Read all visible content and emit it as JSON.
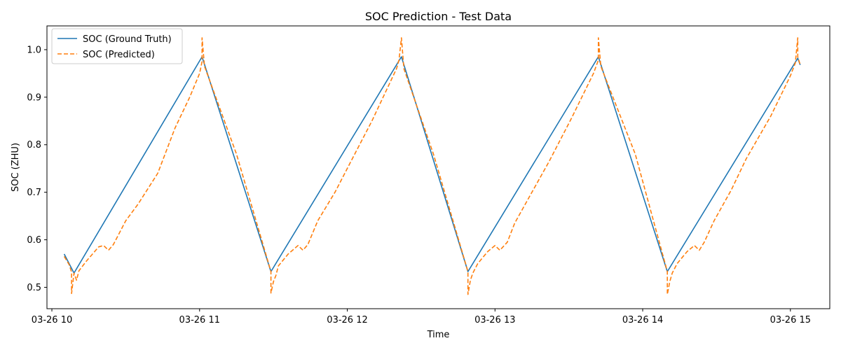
{
  "chart_data": {
    "type": "line",
    "title": "SOC Prediction - Test Data",
    "xlabel": "Time",
    "ylabel": "SOC (ZHU)",
    "x_ticks": [
      "03-26 10",
      "03-26 11",
      "03-26 12",
      "03-26 13",
      "03-26 14",
      "03-26 15"
    ],
    "y_ticks": [
      "0.5",
      "0.6",
      "0.7",
      "0.8",
      "0.9",
      "1.0"
    ],
    "xlim": [
      "2024-03-26 09:58",
      "2024-03-26 15:16"
    ],
    "ylim": [
      0.455,
      1.05
    ],
    "grid": false,
    "legend_position": "top-left",
    "series": [
      {
        "name": "SOC (Ground Truth)",
        "color": "#1f77b4",
        "style": "solid",
        "points": [
          [
            "2024-03-26 10:05",
            0.57
          ],
          [
            "2024-03-26 10:09",
            0.53
          ],
          [
            "2024-03-26 11:01",
            0.985
          ],
          [
            "2024-03-26 11:29",
            0.533
          ],
          [
            "2024-03-26 12:22",
            0.985
          ],
          [
            "2024-03-26 12:49",
            0.533
          ],
          [
            "2024-03-26 13:42",
            0.985
          ],
          [
            "2024-03-26 14:10",
            0.533
          ],
          [
            "2024-03-26 15:03",
            0.982
          ],
          [
            "2024-03-26 15:04",
            0.968
          ]
        ]
      },
      {
        "name": "SOC (Predicted)",
        "color": "#ff7f0e",
        "style": "dashed",
        "points": [
          [
            "2024-03-26 10:05",
            0.565
          ],
          [
            "2024-03-26 10:07",
            0.548
          ],
          [
            "2024-03-26 10:08",
            0.532
          ],
          [
            "2024-03-26 10:08",
            0.487
          ],
          [
            "2024-03-26 10:09",
            0.53
          ],
          [
            "2024-03-26 10:10",
            0.515
          ],
          [
            "2024-03-26 10:11",
            0.535
          ],
          [
            "2024-03-26 10:14",
            0.555
          ],
          [
            "2024-03-26 10:19",
            0.585
          ],
          [
            "2024-03-26 10:21",
            0.588
          ],
          [
            "2024-03-26 10:23",
            0.578
          ],
          [
            "2024-03-26 10:25",
            0.59
          ],
          [
            "2024-03-26 10:30",
            0.64
          ],
          [
            "2024-03-26 10:35",
            0.675
          ],
          [
            "2024-03-26 10:43",
            0.74
          ],
          [
            "2024-03-26 10:50",
            0.835
          ],
          [
            "2024-03-26 10:56",
            0.9
          ],
          [
            "2024-03-26 11:00",
            0.95
          ],
          [
            "2024-03-26 11:01",
            0.975
          ],
          [
            "2024-03-26 11:01",
            1.025
          ],
          [
            "2024-03-26 11:02",
            0.965
          ],
          [
            "2024-03-26 11:15",
            0.78
          ],
          [
            "2024-03-26 11:29",
            0.533
          ],
          [
            "2024-03-26 11:29",
            0.488
          ],
          [
            "2024-03-26 11:30",
            0.512
          ],
          [
            "2024-03-26 11:31",
            0.525
          ],
          [
            "2024-03-26 11:32",
            0.545
          ],
          [
            "2024-03-26 11:36",
            0.57
          ],
          [
            "2024-03-26 11:40",
            0.588
          ],
          [
            "2024-03-26 11:42",
            0.578
          ],
          [
            "2024-03-26 11:44",
            0.59
          ],
          [
            "2024-03-26 11:48",
            0.64
          ],
          [
            "2024-03-26 11:55",
            0.7
          ],
          [
            "2024-03-26 12:01",
            0.76
          ],
          [
            "2024-03-26 12:10",
            0.85
          ],
          [
            "2024-03-26 12:20",
            0.96
          ],
          [
            "2024-03-26 12:21",
            0.978
          ],
          [
            "2024-03-26 12:22",
            1.025
          ],
          [
            "2024-03-26 12:23",
            0.96
          ],
          [
            "2024-03-26 12:35",
            0.78
          ],
          [
            "2024-03-26 12:49",
            0.533
          ],
          [
            "2024-03-26 12:49",
            0.485
          ],
          [
            "2024-03-26 12:50",
            0.515
          ],
          [
            "2024-03-26 12:51",
            0.53
          ],
          [
            "2024-03-26 12:53",
            0.55
          ],
          [
            "2024-03-26 12:57",
            0.575
          ],
          [
            "2024-03-26 13:00",
            0.588
          ],
          [
            "2024-03-26 13:02",
            0.578
          ],
          [
            "2024-03-26 13:05",
            0.595
          ],
          [
            "2024-03-26 13:08",
            0.635
          ],
          [
            "2024-03-26 13:15",
            0.7
          ],
          [
            "2024-03-26 13:22",
            0.765
          ],
          [
            "2024-03-26 13:31",
            0.855
          ],
          [
            "2024-03-26 13:40",
            0.95
          ],
          [
            "2024-03-26 13:42",
            0.978
          ],
          [
            "2024-03-26 13:42",
            1.025
          ],
          [
            "2024-03-26 13:43",
            0.965
          ],
          [
            "2024-03-26 13:57",
            0.78
          ],
          [
            "2024-03-26 14:10",
            0.533
          ],
          [
            "2024-03-26 14:10",
            0.485
          ],
          [
            "2024-03-26 14:11",
            0.512
          ],
          [
            "2024-03-26 14:12",
            0.53
          ],
          [
            "2024-03-26 14:14",
            0.55
          ],
          [
            "2024-03-26 14:18",
            0.575
          ],
          [
            "2024-03-26 14:21",
            0.588
          ],
          [
            "2024-03-26 14:23",
            0.578
          ],
          [
            "2024-03-26 14:25",
            0.595
          ],
          [
            "2024-03-26 14:29",
            0.64
          ],
          [
            "2024-03-26 14:36",
            0.705
          ],
          [
            "2024-03-26 14:42",
            0.77
          ],
          [
            "2024-03-26 14:52",
            0.86
          ],
          [
            "2024-03-26 15:00",
            0.945
          ],
          [
            "2024-03-26 15:02",
            0.972
          ],
          [
            "2024-03-26 15:03",
            1.025
          ],
          [
            "2024-03-26 15:03",
            0.985
          ],
          [
            "2024-03-26 15:04",
            0.968
          ]
        ]
      }
    ]
  }
}
